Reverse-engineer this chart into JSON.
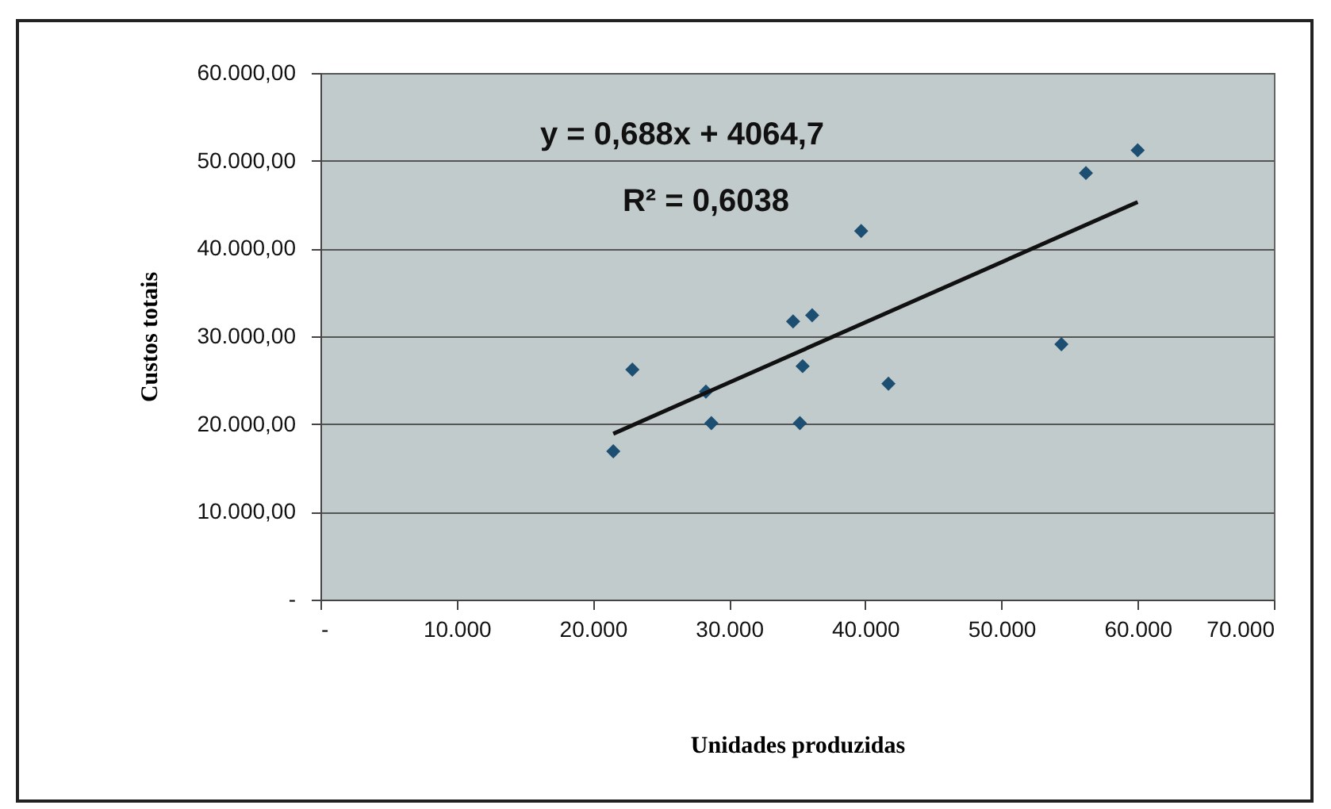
{
  "chart_data": {
    "type": "scatter",
    "xlabel": "Unidades produzidas",
    "ylabel": "Custos totais",
    "xlim": [
      0,
      70000
    ],
    "ylim": [
      0,
      60000
    ],
    "xticks": [
      {
        "value": 0,
        "label": "-"
      },
      {
        "value": 10000,
        "label": "10.000"
      },
      {
        "value": 20000,
        "label": "20.000"
      },
      {
        "value": 30000,
        "label": "30.000"
      },
      {
        "value": 40000,
        "label": "40.000"
      },
      {
        "value": 50000,
        "label": "50.000"
      },
      {
        "value": 60000,
        "label": "60.000"
      },
      {
        "value": 70000,
        "label": "70.000"
      }
    ],
    "yticks": [
      {
        "value": 0,
        "label": "-"
      },
      {
        "value": 10000,
        "label": "10.000,00"
      },
      {
        "value": 20000,
        "label": "20.000,00"
      },
      {
        "value": 30000,
        "label": "30.000,00"
      },
      {
        "value": 40000,
        "label": "40.000,00"
      },
      {
        "value": 50000,
        "label": "50.000,00"
      },
      {
        "value": 60000,
        "label": "60.000,00"
      }
    ],
    "grid": "y",
    "series": [
      {
        "marker": "diamond",
        "color": "#1d4f73",
        "x": [
          21500,
          22900,
          28300,
          28700,
          34700,
          36100,
          35400,
          35200,
          39700,
          41700,
          54400,
          56200,
          60000
        ],
        "values": [
          16900,
          26200,
          23700,
          20100,
          31700,
          32400,
          26600,
          20100,
          42000,
          24600,
          29100,
          48600,
          51200
        ]
      },
      {
        "type": "line",
        "marker": "none",
        "color": "#111111",
        "x": [
          21500,
          60000
        ],
        "values": [
          18900,
          45300
        ]
      }
    ],
    "annotations": [
      "y = 0,688x + 4064,7",
      "R² = 0,6038"
    ]
  }
}
